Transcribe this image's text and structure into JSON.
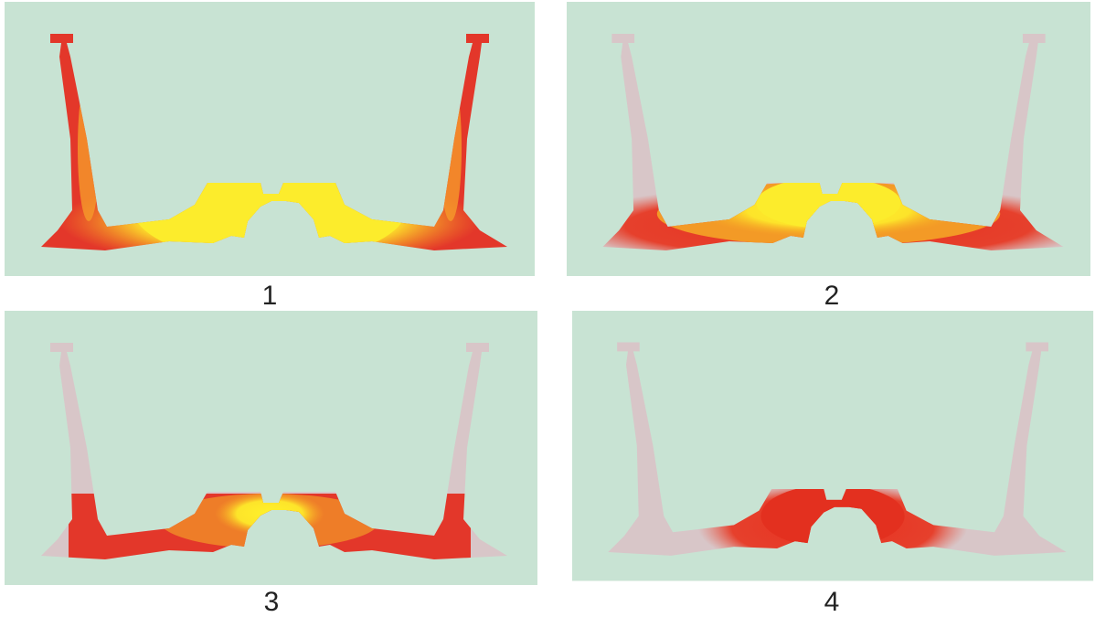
{
  "panels": [
    {
      "label": "1"
    },
    {
      "label": "2"
    },
    {
      "label": "3"
    },
    {
      "label": "4"
    }
  ]
}
